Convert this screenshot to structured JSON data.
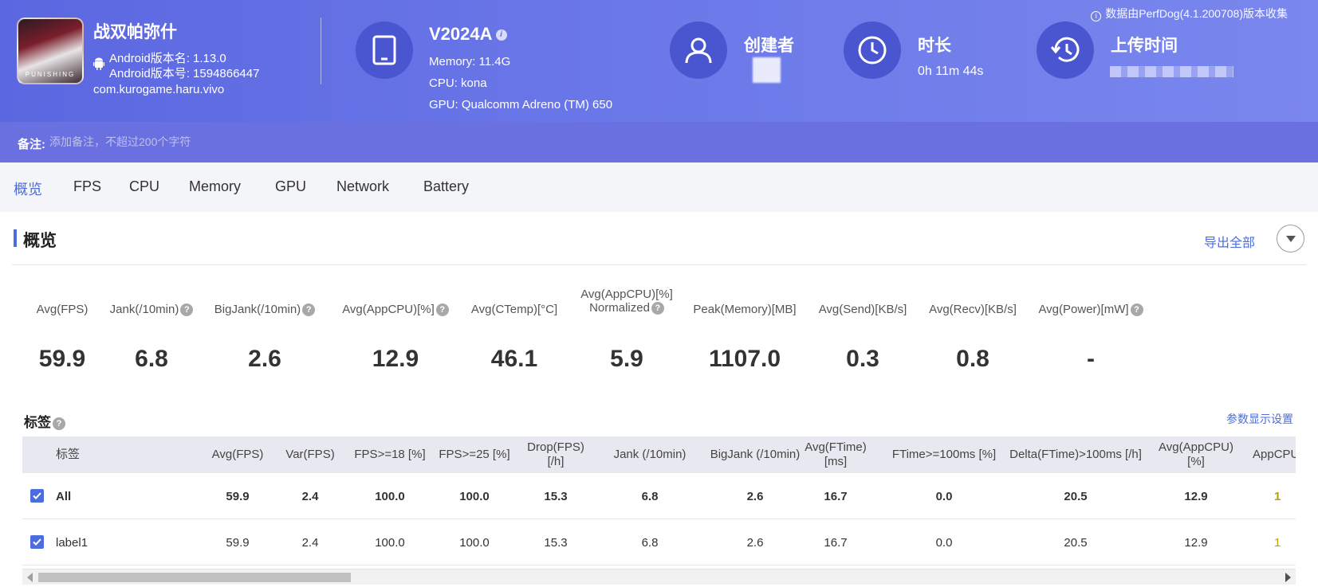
{
  "app": {
    "name": "战双帕弥什",
    "icon_text": "PUNISHING",
    "version_name": "Android版本名: 1.13.0",
    "version_code": "Android版本号: 1594866447",
    "package": "com.kurogame.haru.vivo"
  },
  "device": {
    "model": "V2024A",
    "memory": "Memory: 11.4G",
    "cpu": "CPU: kona",
    "gpu": "GPU: Qualcomm Adreno (TM) 650"
  },
  "creator": {
    "title": "创建者"
  },
  "duration": {
    "title": "时长",
    "value": "0h 11m 44s"
  },
  "upload": {
    "title": "上传时间"
  },
  "perfdog_note": "数据由PerfDog(4.1.200708)版本收集",
  "note": {
    "label": "备注:",
    "placeholder": "添加备注，不超过200个字符"
  },
  "tabs": [
    "概览",
    "FPS",
    "CPU",
    "Memory",
    "GPU",
    "Network",
    "Battery"
  ],
  "overview": {
    "title": "概览",
    "export_label": "导出全部",
    "metrics": [
      {
        "label": "Avg(FPS)",
        "value": "59.9",
        "help": false
      },
      {
        "label": "Jank(/10min)",
        "value": "6.8",
        "help": true
      },
      {
        "label": "BigJank(/10min)",
        "value": "2.6",
        "help": true
      },
      {
        "label": "Avg(AppCPU)[%]",
        "value": "12.9",
        "help": true
      },
      {
        "label": "Avg(CTemp)[°C]",
        "value": "46.1",
        "help": false
      },
      {
        "label": "Avg(AppCPU)[%]",
        "label2": "Normalized",
        "value": "5.9",
        "help": true
      },
      {
        "label": "Peak(Memory)[MB]",
        "value": "1107.0",
        "help": false
      },
      {
        "label": "Avg(Send)[KB/s]",
        "value": "0.3",
        "help": false
      },
      {
        "label": "Avg(Recv)[KB/s]",
        "value": "0.8",
        "help": false
      },
      {
        "label": "Avg(Power)[mW]",
        "value": "-",
        "help": true
      }
    ]
  },
  "labels": {
    "title": "标签",
    "settings_label": "参数显示设置",
    "columns": [
      {
        "line1": "标签",
        "line2": ""
      },
      {
        "line1": "Avg(FPS)",
        "line2": ""
      },
      {
        "line1": "Var(FPS)",
        "line2": ""
      },
      {
        "line1": "FPS>=18 [%]",
        "line2": ""
      },
      {
        "line1": "FPS>=25 [%]",
        "line2": ""
      },
      {
        "line1": "Drop(FPS)",
        "line2": "[/h]"
      },
      {
        "line1": "Jank (/10min)",
        "line2": ""
      },
      {
        "line1": "BigJank (/10min)",
        "line2": ""
      },
      {
        "line1": "Avg(FTime)",
        "line2": "[ms]"
      },
      {
        "line1": "FTime>=100ms [%]",
        "line2": ""
      },
      {
        "line1": "Delta(FTime)>100ms [/h]",
        "line2": ""
      },
      {
        "line1": "Avg(AppCPU)",
        "line2": "[%]"
      },
      {
        "line1": "AppCPU",
        "line2": ""
      }
    ],
    "rows": [
      {
        "name": "All",
        "bold": true,
        "cells": [
          "59.9",
          "2.4",
          "100.0",
          "100.0",
          "15.3",
          "6.8",
          "2.6",
          "16.7",
          "0.0",
          "20.5",
          "12.9",
          "1"
        ]
      },
      {
        "name": "label1",
        "bold": false,
        "cells": [
          "59.9",
          "2.4",
          "100.0",
          "100.0",
          "15.3",
          "6.8",
          "2.6",
          "16.7",
          "0.0",
          "20.5",
          "12.9",
          "1"
        ]
      }
    ]
  },
  "colors": {
    "accent": "#4c6de0",
    "header": "#5b67e0",
    "note_bar": "#6a70df"
  }
}
